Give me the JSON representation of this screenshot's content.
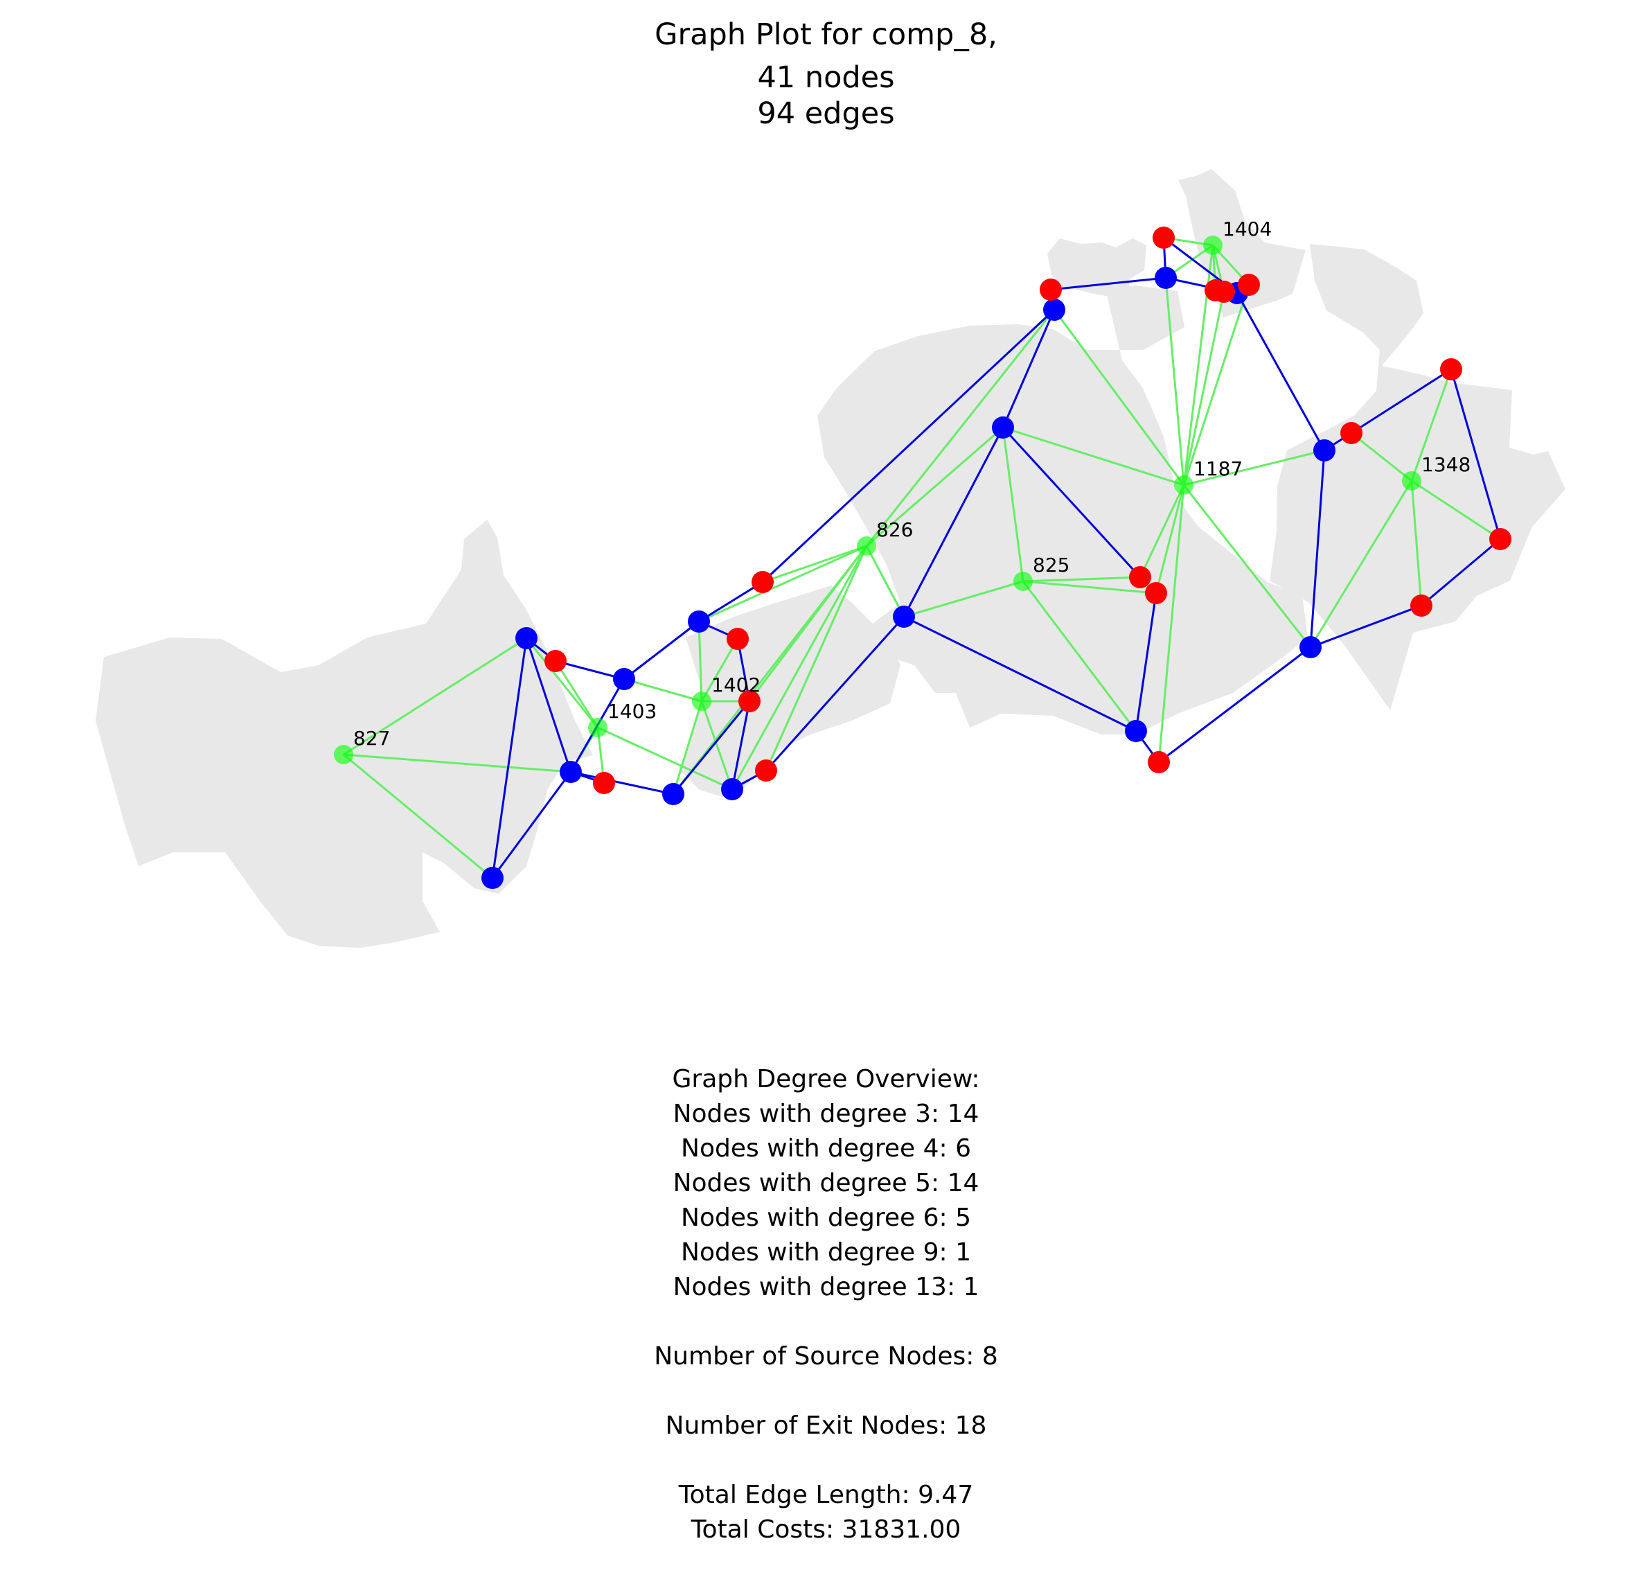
{
  "title": {
    "line1": "Graph Plot for comp_8,",
    "line2": "41 nodes",
    "line3": "94 edges"
  },
  "colors": {
    "background_region": "#e8e8e8",
    "source_node": "#00ff00",
    "junction_node": "#0000ff",
    "exit_node": "#ff0000",
    "source_edge": "#66ee66",
    "main_edge": "#0000dd"
  },
  "node_labels": [
    "1404",
    "1187",
    "1348",
    "826",
    "825",
    "1402",
    "1403",
    "827"
  ],
  "stats": {
    "heading": "Graph Degree Overview:",
    "degrees": [
      "Nodes with degree 3: 14",
      "Nodes with degree 4: 6",
      "Nodes with degree 5: 14",
      "Nodes with degree 6: 5",
      "Nodes with degree 9: 1",
      "Nodes with degree 13: 1"
    ],
    "sources": "Number of Source Nodes: 8",
    "exits": "Number of Exit Nodes: 18",
    "edge_length": "Total Edge Length: 9.47",
    "costs": "Total Costs: 31831.00"
  }
}
